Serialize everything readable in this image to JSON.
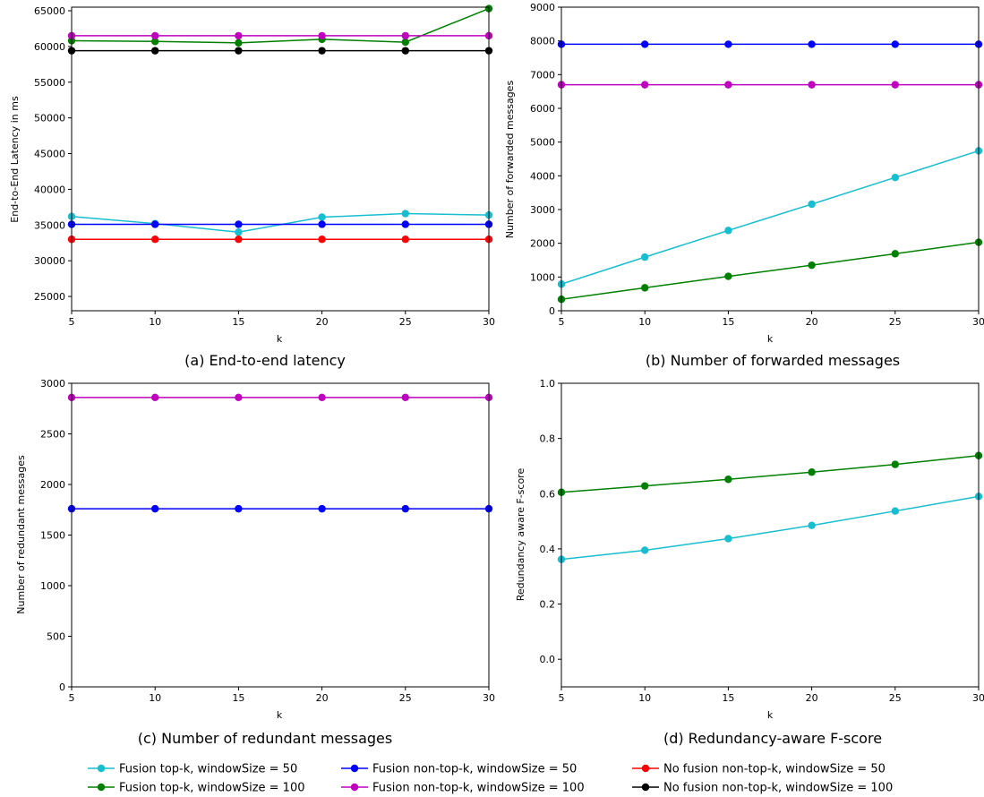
{
  "chart_data": [
    {
      "type": "line",
      "caption": "(a) End-to-end latency",
      "xlabel": "k",
      "ylabel": "End-to-End Latency in ms",
      "x": [
        5,
        10,
        15,
        20,
        25,
        30
      ],
      "xlim": [
        5,
        30
      ],
      "ylim": [
        23000,
        65500
      ],
      "yticks": [
        25000,
        30000,
        35000,
        40000,
        45000,
        50000,
        55000,
        60000,
        65000
      ],
      "series": [
        {
          "name": "Fusion top-k, windowSize = 50",
          "color": "#17becf",
          "values": [
            36200,
            35200,
            34000,
            36100,
            36600,
            36400
          ]
        },
        {
          "name": "Fusion non-top-k, windowSize = 50",
          "color": "#0000ff",
          "values": [
            35100,
            35100,
            35100,
            35100,
            35100,
            35100
          ]
        },
        {
          "name": "No fusion non-top-k, windowSize = 50",
          "color": "#ff0000",
          "values": [
            33000,
            33000,
            33000,
            33000,
            33000,
            33000
          ]
        },
        {
          "name": "Fusion top-k, windowSize = 100",
          "color": "#008000",
          "values": [
            60800,
            60700,
            60500,
            61000,
            60600,
            65300
          ]
        },
        {
          "name": "Fusion non-top-k, windowSize = 100",
          "color": "#bf00bf",
          "values": [
            61500,
            61500,
            61500,
            61500,
            61500,
            61500
          ]
        },
        {
          "name": "No fusion non-top-k, windowSize = 100",
          "color": "#000000",
          "values": [
            59400,
            59400,
            59400,
            59400,
            59400,
            59400
          ]
        }
      ]
    },
    {
      "type": "line",
      "caption": "(b) Number of forwarded messages",
      "xlabel": "k",
      "ylabel": "Number of forwarded messages",
      "x": [
        5,
        10,
        15,
        20,
        25,
        30
      ],
      "xlim": [
        5,
        30
      ],
      "ylim": [
        0,
        9000
      ],
      "yticks": [
        0,
        1000,
        2000,
        3000,
        4000,
        5000,
        6000,
        7000,
        8000,
        9000
      ],
      "series": [
        {
          "name": "Fusion non-top-k, windowSize = 50",
          "color": "#0000ff",
          "values": [
            7900,
            7900,
            7900,
            7900,
            7900,
            7900
          ]
        },
        {
          "name": "Fusion non-top-k, windowSize = 100",
          "color": "#bf00bf",
          "values": [
            6700,
            6700,
            6700,
            6700,
            6700,
            6700
          ]
        },
        {
          "name": "Fusion top-k, windowSize = 50",
          "color": "#17becf",
          "values": [
            790,
            1590,
            2380,
            3160,
            3950,
            4740
          ]
        },
        {
          "name": "Fusion top-k, windowSize = 100",
          "color": "#008000",
          "values": [
            340,
            680,
            1020,
            1350,
            1690,
            2030
          ]
        }
      ]
    },
    {
      "type": "line",
      "caption": "(c) Number of redundant messages",
      "xlabel": "k",
      "ylabel": "Number of redundant messages",
      "x": [
        5,
        10,
        15,
        20,
        25,
        30
      ],
      "xlim": [
        5,
        30
      ],
      "ylim": [
        0,
        3000
      ],
      "yticks": [
        0,
        500,
        1000,
        1500,
        2000,
        2500,
        3000
      ],
      "series": [
        {
          "name": "Fusion non-top-k, windowSize = 100",
          "color": "#bf00bf",
          "values": [
            2860,
            2860,
            2860,
            2860,
            2860,
            2860
          ]
        },
        {
          "name": "Fusion non-top-k, windowSize = 50",
          "color": "#0000ff",
          "values": [
            1760,
            1760,
            1760,
            1760,
            1760,
            1760
          ]
        }
      ]
    },
    {
      "type": "line",
      "caption": "(d) Redundancy-aware F-score",
      "xlabel": "k",
      "ylabel": "Redundancy aware F-score",
      "x": [
        5,
        10,
        15,
        20,
        25,
        30
      ],
      "xlim": [
        5,
        30
      ],
      "ylim": [
        -0.1,
        1.0
      ],
      "yticks": [
        0.0,
        0.2,
        0.4,
        0.6,
        0.8,
        1.0
      ],
      "series": [
        {
          "name": "Fusion top-k, windowSize = 100",
          "color": "#008000",
          "values": [
            0.605,
            0.628,
            0.652,
            0.678,
            0.706,
            0.738
          ]
        },
        {
          "name": "Fusion top-k, windowSize = 50",
          "color": "#17becf",
          "values": [
            0.362,
            0.395,
            0.437,
            0.485,
            0.537,
            0.59
          ]
        }
      ]
    }
  ],
  "legend": {
    "placement": "bottom",
    "items": [
      {
        "label": "Fusion top-k, windowSize = 50",
        "color": "#17becf"
      },
      {
        "label": "Fusion non-top-k, windowSize = 50",
        "color": "#0000ff"
      },
      {
        "label": "No fusion non-top-k, windowSize = 50",
        "color": "#ff0000"
      },
      {
        "label": "Fusion top-k, windowSize = 100",
        "color": "#008000"
      },
      {
        "label": "Fusion non-top-k, windowSize = 100",
        "color": "#bf00bf"
      },
      {
        "label": "No fusion non-top-k, windowSize = 100",
        "color": "#000000"
      }
    ]
  }
}
